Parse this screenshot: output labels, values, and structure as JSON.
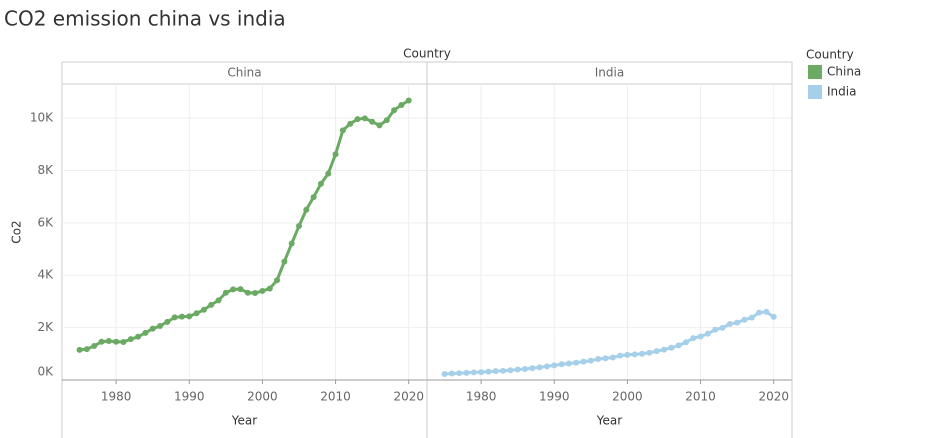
{
  "chart_data": {
    "type": "line",
    "title": "CO2 emission china vs india",
    "panel_header": "Country",
    "legend_title": "Country",
    "xlabel": "Year",
    "ylabel": "Co2",
    "x": [
      1975,
      1976,
      1977,
      1978,
      1979,
      1980,
      1981,
      1982,
      1983,
      1984,
      1985,
      1986,
      1987,
      1988,
      1989,
      1990,
      1991,
      1992,
      1993,
      1994,
      1995,
      1996,
      1997,
      1998,
      1999,
      2000,
      2001,
      2002,
      2003,
      2004,
      2005,
      2006,
      2007,
      2008,
      2009,
      2010,
      2011,
      2012,
      2013,
      2014,
      2015,
      2016,
      2017,
      2018,
      2019,
      2020
    ],
    "series": [
      {
        "name": "China",
        "color": "#6aaa63",
        "values": [
          1150,
          1180,
          1300,
          1460,
          1490,
          1460,
          1450,
          1560,
          1650,
          1800,
          1960,
          2060,
          2220,
          2390,
          2420,
          2430,
          2550,
          2680,
          2870,
          3040,
          3330,
          3460,
          3470,
          3330,
          3320,
          3400,
          3490,
          3810,
          4520,
          5210,
          5880,
          6500,
          6980,
          7490,
          7880,
          8620,
          9530,
          9780,
          9960,
          9990,
          9860,
          9720,
          9920,
          10300,
          10500,
          10670
        ]
      },
      {
        "name": "India",
        "color": "#a6cfe9",
        "values": [
          230,
          250,
          260,
          270,
          290,
          300,
          320,
          340,
          350,
          370,
          400,
          420,
          450,
          480,
          520,
          560,
          600,
          630,
          660,
          700,
          740,
          800,
          830,
          860,
          930,
          960,
          980,
          1000,
          1040,
          1100,
          1160,
          1230,
          1320,
          1440,
          1600,
          1660,
          1770,
          1920,
          1990,
          2140,
          2190,
          2300,
          2380,
          2570,
          2600,
          2410
        ]
      }
    ],
    "xlim": [
      1972.6,
      2022.5
    ],
    "xticks": [
      1980,
      1990,
      2000,
      2010,
      2020
    ],
    "ylim": [
      0,
      11300
    ],
    "yticks": [
      {
        "value": 0,
        "label": "0K"
      },
      {
        "value": 2000,
        "label": "2K"
      },
      {
        "value": 4000,
        "label": "4K"
      },
      {
        "value": 6000,
        "label": "6K"
      },
      {
        "value": 8000,
        "label": "8K"
      },
      {
        "value": 10000,
        "label": "10K"
      }
    ],
    "grid": true
  }
}
